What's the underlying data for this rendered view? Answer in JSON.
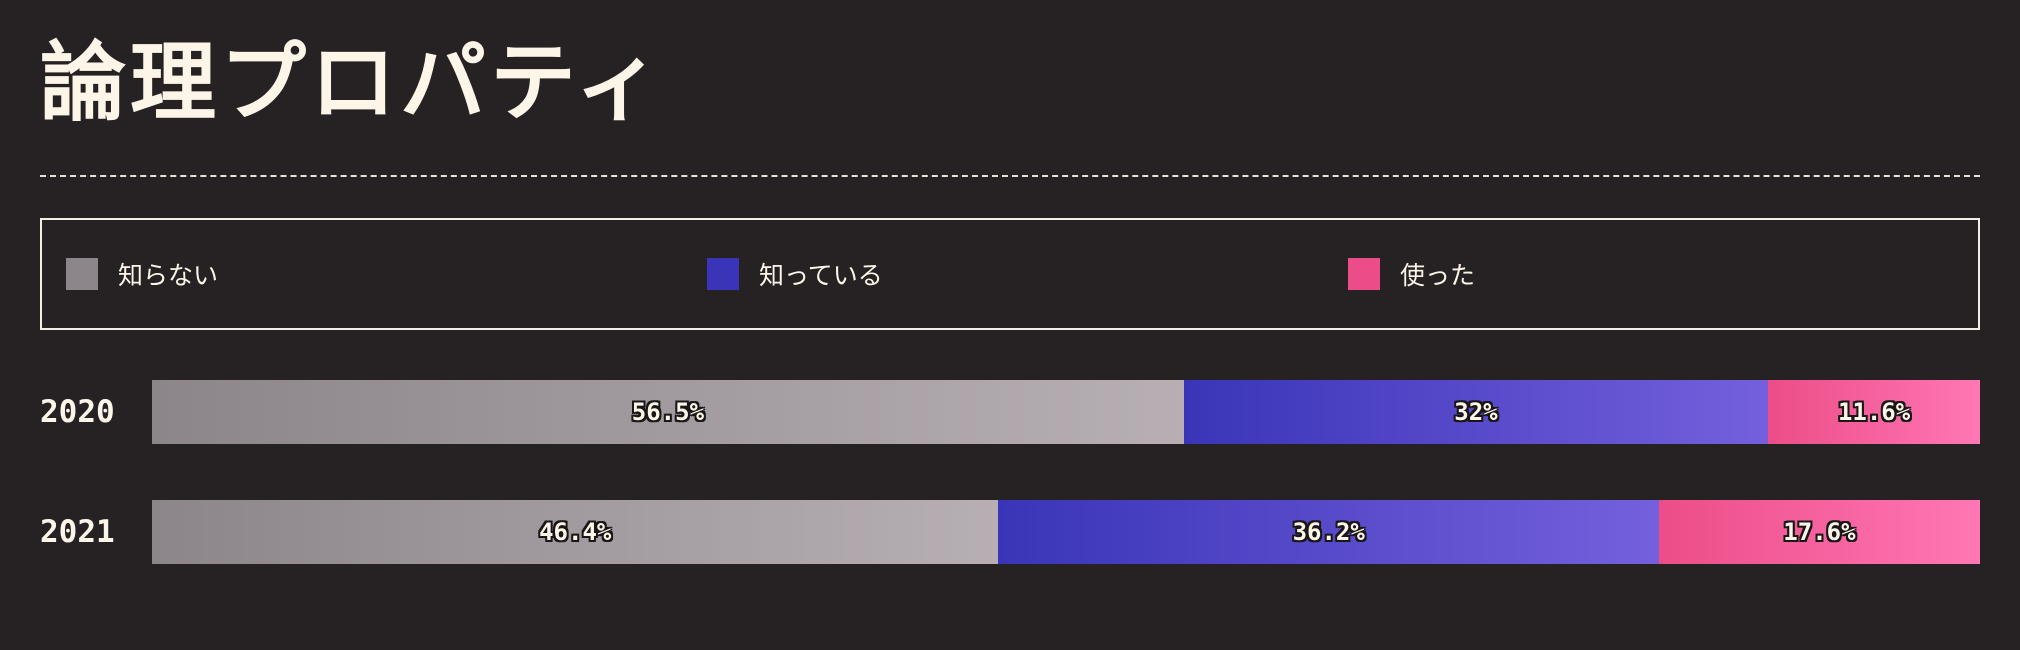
{
  "title": "論理プロパティ",
  "chart_data": {
    "type": "bar",
    "orientation": "horizontal",
    "stacked": true,
    "categories": [
      "2020",
      "2021"
    ],
    "series": [
      {
        "name": "知らない",
        "values": [
          56.5,
          46.4
        ],
        "labels": [
          "56.5%",
          "46.4%"
        ],
        "color": "#8c8589",
        "color_end": "#b7afb3"
      },
      {
        "name": "知っている",
        "values": [
          32,
          36.2
        ],
        "labels": [
          "32%",
          "36.2%"
        ],
        "color": "#3a35b8",
        "color_end": "#7460dc"
      },
      {
        "name": "使った",
        "values": [
          11.6,
          17.6
        ],
        "labels": [
          "11.6%",
          "17.6%"
        ],
        "color": "#ec4d88",
        "color_end": "#ff77b4"
      }
    ],
    "xlim": [
      0,
      100
    ],
    "unit": "%",
    "legend_position": "top",
    "grid": false
  }
}
